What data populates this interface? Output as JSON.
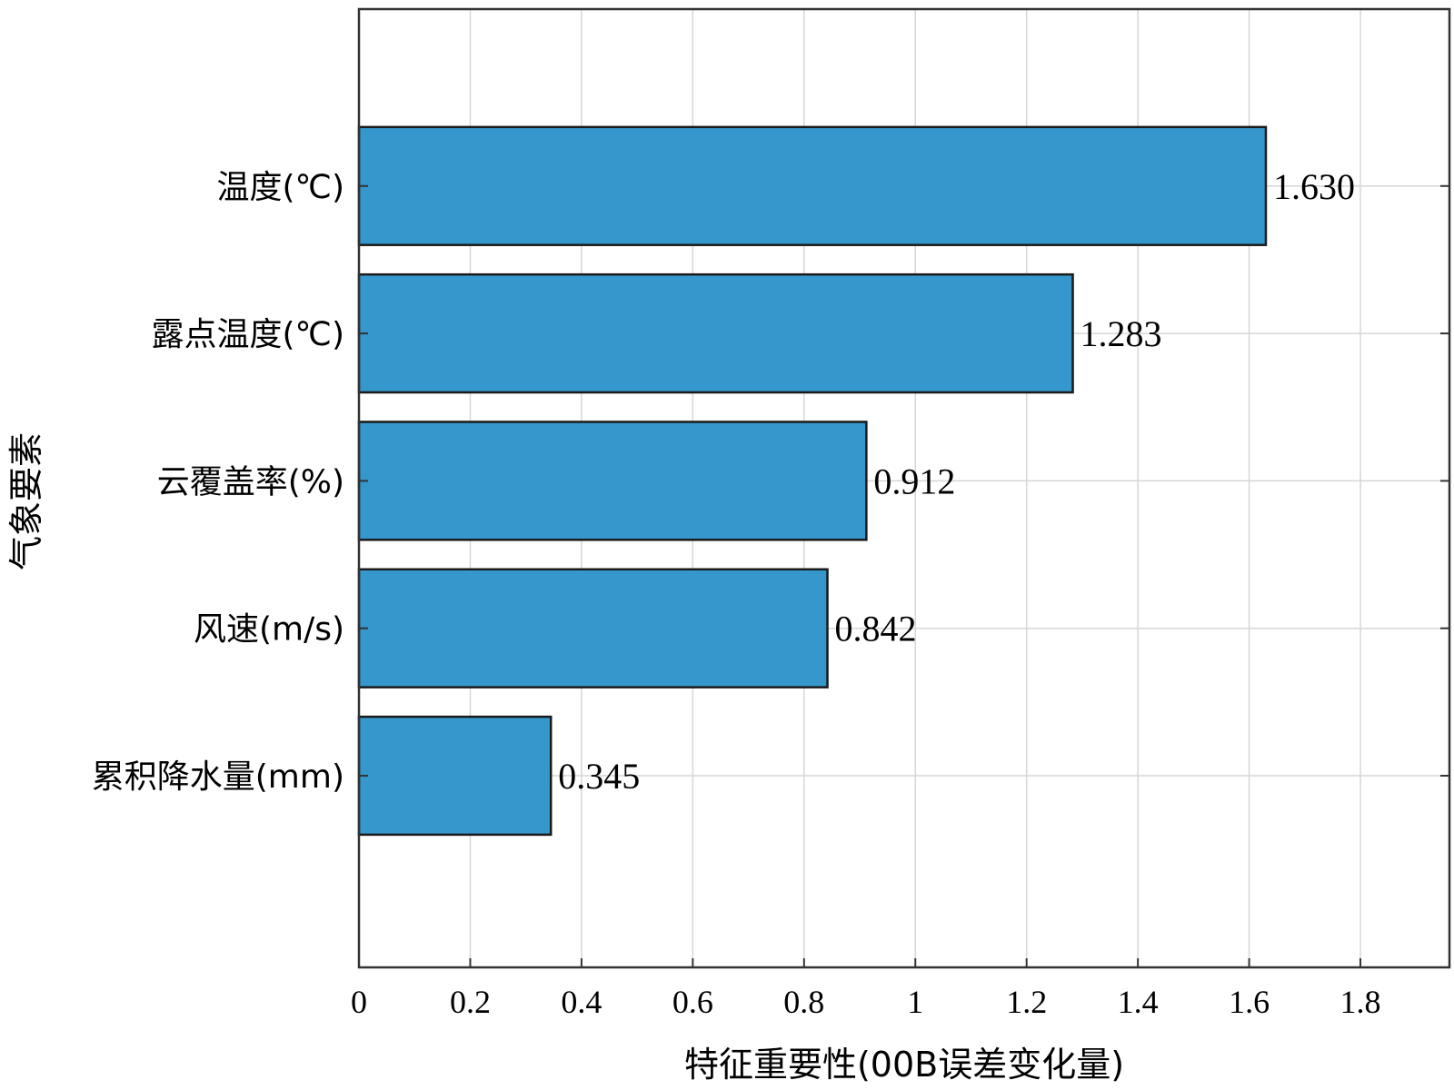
{
  "chart_data": {
    "type": "bar",
    "orientation": "horizontal",
    "categories": [
      "温度(℃)",
      "露点温度(℃)",
      "云覆盖率(%)",
      "风速(m/s)",
      "累积降水量(mm)"
    ],
    "values": [
      1.63,
      1.283,
      0.912,
      0.842,
      0.345
    ],
    "value_labels": [
      "1.630",
      "1.283",
      "0.912",
      "0.842",
      "0.345"
    ],
    "xlabel": "特征重要性(00B误差变化量)",
    "ylabel": "气象要素",
    "xlim": [
      0,
      1.96
    ],
    "xticks": [
      0,
      0.2,
      0.4,
      0.6,
      0.8,
      1,
      1.2,
      1.4,
      1.6,
      1.8
    ],
    "xtick_labels": [
      "0",
      "0.2",
      "0.4",
      "0.6",
      "0.8",
      "1",
      "1.2",
      "1.4",
      "1.6",
      "1.8"
    ],
    "grid": true,
    "bar_color": "#3597CC",
    "bar_edge_color": "#1a1a1a"
  }
}
